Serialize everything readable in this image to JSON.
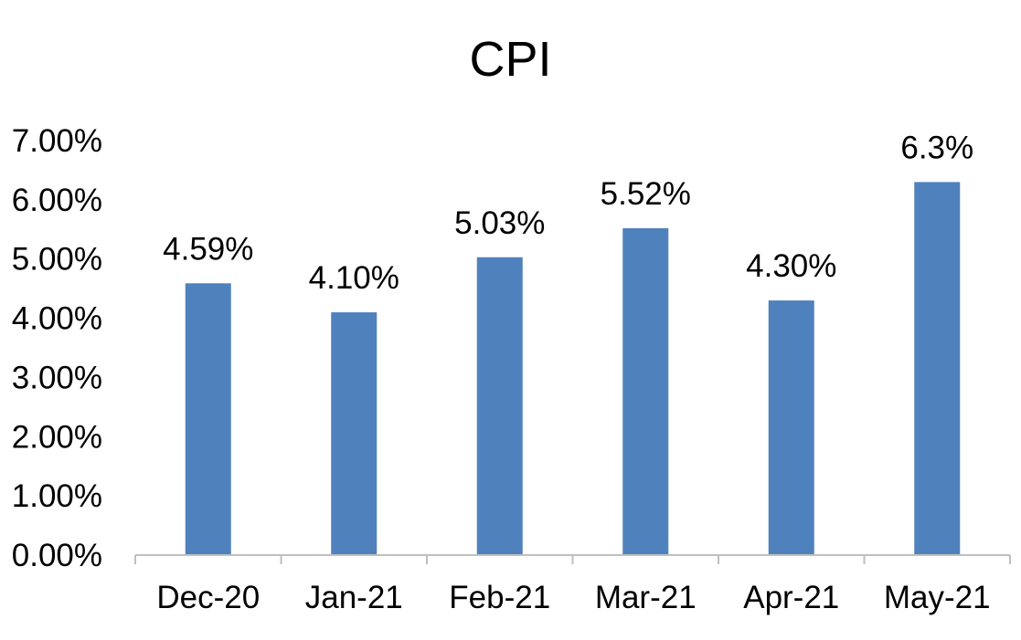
{
  "chart_data": {
    "type": "bar",
    "title": "CPI",
    "xlabel": "",
    "ylabel": "",
    "categories": [
      "Dec-20",
      "Jan-21",
      "Feb-21",
      "Mar-21",
      "Apr-21",
      "May-21"
    ],
    "values": [
      4.59,
      4.1,
      5.03,
      5.52,
      4.3,
      6.3
    ],
    "data_labels": [
      "4.59%",
      "4.10%",
      "5.03%",
      "5.52%",
      "4.30%",
      "6.3%"
    ],
    "ylim": [
      0,
      7
    ],
    "yticks": [
      0,
      1,
      2,
      3,
      4,
      5,
      6,
      7
    ],
    "ytick_labels": [
      "0.00%",
      "1.00%",
      "2.00%",
      "3.00%",
      "4.00%",
      "5.00%",
      "6.00%",
      "7.00%"
    ],
    "grid": false,
    "legend": "none",
    "bar_color": "#4F81BD",
    "axis_color": "#BFBFBF"
  }
}
